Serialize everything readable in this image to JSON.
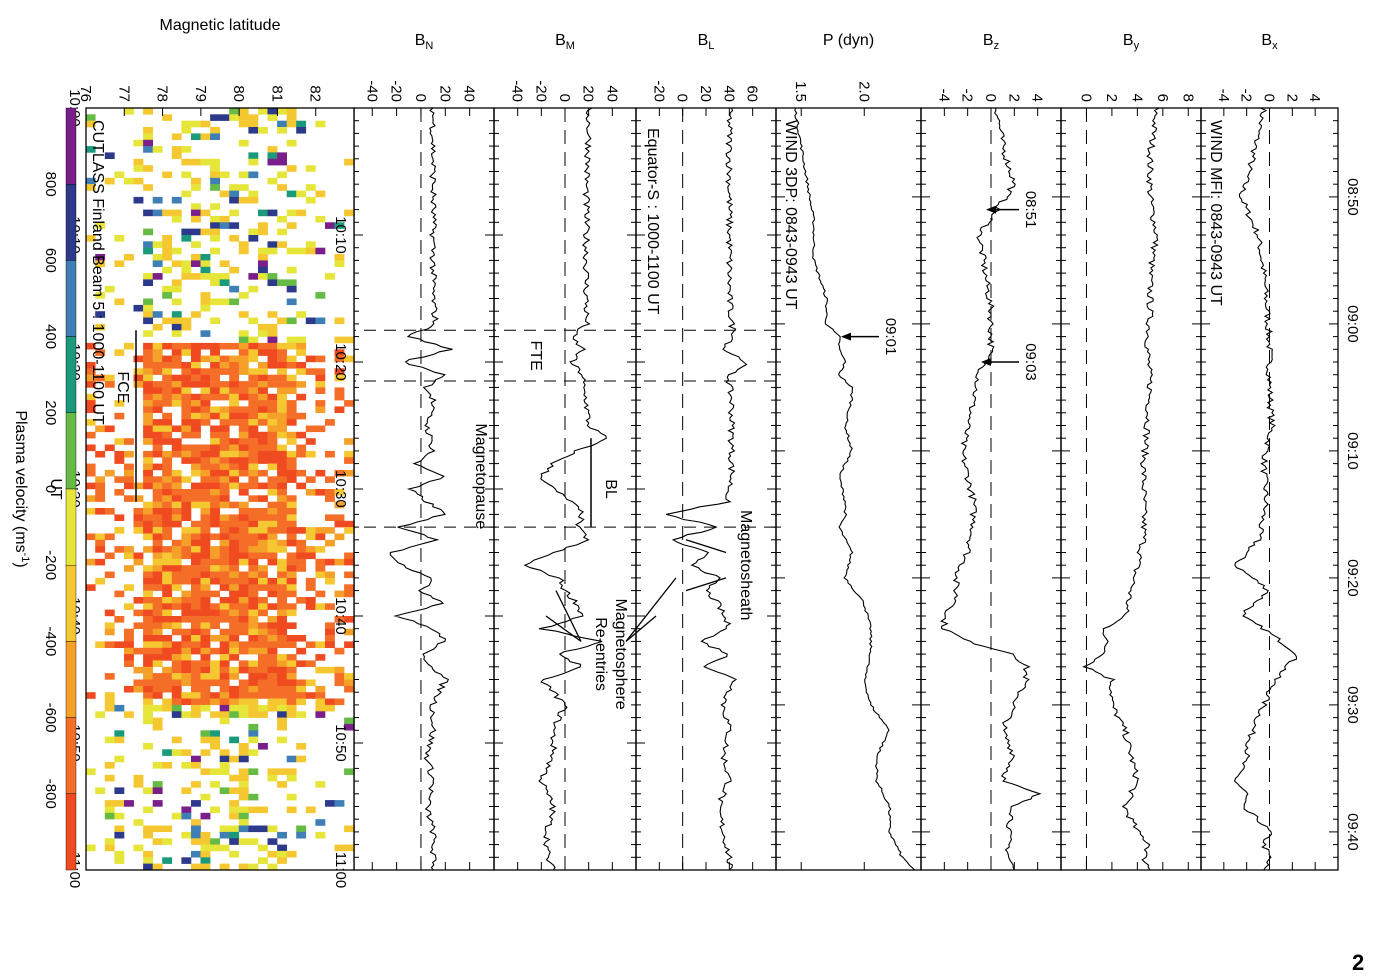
{
  "figure_number": "2",
  "chart_data": [
    {
      "type": "line",
      "panel": "wind_mfi",
      "title": "WIND MFI: 0843-0943 UT",
      "x_ticks": [
        "08:50",
        "09:00",
        "09:10",
        "09:20",
        "09:30",
        "09:40"
      ],
      "xlim_minutes": [
        -17,
        43
      ],
      "annotations": [
        "08:51",
        "09:03"
      ],
      "series": [
        {
          "name": "Bx",
          "ylabel": "B",
          "sub": "x",
          "ylim": [
            -6,
            6
          ],
          "yticks": [
            "4",
            "2",
            "0",
            "-2",
            "-4"
          ],
          "x": [
            -17,
            -13,
            -10,
            -7,
            -4,
            -1,
            2,
            5,
            8,
            11,
            14,
            17,
            19,
            20,
            21,
            23,
            24,
            26,
            28,
            30,
            32,
            34,
            36,
            37,
            38,
            39,
            40,
            41,
            42,
            43
          ],
          "y": [
            -0.5,
            -1.5,
            -2.5,
            -1,
            -0.5,
            -0.2,
            0,
            0,
            0.2,
            -0.5,
            -0.3,
            -1,
            -3,
            -1.5,
            0,
            -2.5,
            -0.5,
            2.5,
            0.5,
            -0.5,
            -1.5,
            -2,
            -3,
            -2,
            -2.5,
            -1,
            0,
            -0.5,
            0,
            -0.5
          ]
        },
        {
          "name": "By",
          "ylabel": "B",
          "sub": "y",
          "ylim": [
            -2,
            9
          ],
          "yticks": [
            "8",
            "6",
            "4",
            "2",
            "0"
          ],
          "x": [
            -17,
            -13,
            -10,
            -7,
            -4,
            -1,
            2,
            5,
            8,
            11,
            14,
            17,
            19,
            21,
            23,
            24,
            25,
            26,
            27,
            28,
            30,
            32,
            34,
            36,
            37,
            38,
            40,
            41,
            42,
            43
          ],
          "y": [
            5.5,
            5,
            5,
            5.5,
            5,
            5,
            4.8,
            5,
            4.8,
            4.5,
            4.5,
            4.5,
            4,
            3.5,
            3,
            1.5,
            1.5,
            1.5,
            0,
            2,
            2,
            3,
            3.5,
            4,
            3.5,
            3,
            4,
            5,
            4.5,
            5
          ]
        },
        {
          "name": "Bz",
          "ylabel": "B",
          "sub": "z",
          "ylim": [
            -6,
            6
          ],
          "yticks": [
            "4",
            "2",
            "0",
            "-2",
            "-4"
          ],
          "x": [
            -17,
            -14,
            -11,
            -9,
            -7,
            -4,
            -1,
            2,
            4,
            6,
            8,
            10,
            12,
            14,
            16,
            18,
            20,
            21,
            22,
            23,
            24,
            25,
            26,
            27,
            28,
            30,
            32,
            34,
            36,
            37,
            38,
            40,
            42,
            43
          ],
          "y": [
            0.5,
            1,
            2,
            0.5,
            -1,
            -0.5,
            0,
            0,
            -1,
            -1.5,
            -2,
            -2.5,
            -2,
            -1.5,
            -1.5,
            -2,
            -3,
            -3,
            -3,
            -4,
            -4,
            -2,
            2,
            3,
            3,
            2,
            1,
            2,
            1,
            4,
            2,
            1.5,
            1.5,
            2
          ]
        },
        {
          "name": "P",
          "ylabel": "P (dyn)",
          "ylim": [
            1.3,
            2.45
          ],
          "yticks": [
            "2.0",
            "1.5"
          ],
          "x": [
            -17,
            -14,
            -11,
            -8,
            -5,
            -2,
            0,
            1,
            2,
            3,
            4,
            5,
            6,
            8,
            10,
            12,
            14,
            15,
            16,
            17,
            18,
            20,
            22,
            24,
            26,
            28,
            30,
            32,
            34,
            36,
            38,
            40,
            42,
            43
          ],
          "y": [
            1.45,
            1.5,
            1.55,
            1.6,
            1.6,
            1.7,
            1.7,
            1.8,
            1.8,
            1.85,
            1.8,
            1.9,
            1.9,
            1.85,
            1.9,
            1.8,
            1.85,
            1.85,
            1.8,
            1.85,
            1.9,
            1.85,
            2,
            2.05,
            2.05,
            2.0,
            2.05,
            2.2,
            2.1,
            2.1,
            2.2,
            2.2,
            2.3,
            2.4
          ]
        }
      ]
    },
    {
      "type": "line",
      "panel": "equator_s",
      "title": "Equator-S : 1000-1100 UT",
      "x_ticks": [
        "10:10",
        "10:20",
        "10:30",
        "10:40",
        "10:50",
        "11:00"
      ],
      "xlim_minutes": [
        0,
        60
      ],
      "annotations": [
        "Magnetosheath",
        "Magnetosphere",
        "Re-entries",
        "BL",
        "FTE",
        "Magnetopause"
      ],
      "series": [
        {
          "name": "BL",
          "ylabel": "B",
          "sub": "L",
          "ylim": [
            -40,
            80
          ],
          "yticks": [
            "60",
            "40",
            "20",
            "0",
            "-20"
          ],
          "x": [
            0,
            3,
            6,
            9,
            12,
            15,
            17,
            18,
            19,
            20,
            21,
            22,
            23,
            25,
            27,
            29,
            31,
            32,
            33,
            34,
            35,
            36,
            37,
            38,
            39,
            40,
            41,
            42,
            43,
            44,
            45,
            47,
            49,
            51,
            53,
            55,
            57,
            59,
            60
          ],
          "y": [
            40,
            40,
            40,
            40,
            40,
            40,
            42,
            45,
            35,
            55,
            40,
            40,
            42,
            42,
            42,
            42,
            38,
            -15,
            30,
            -10,
            20,
            10,
            30,
            20,
            30,
            35,
            40,
            15,
            40,
            20,
            45,
            35,
            40,
            35,
            40,
            30,
            35,
            40,
            40
          ]
        },
        {
          "name": "BM",
          "ylabel": "B",
          "sub": "M",
          "ylim": [
            -60,
            60
          ],
          "yticks": [
            "40",
            "20",
            "0",
            "-20",
            "-40"
          ],
          "x": [
            0,
            3,
            6,
            9,
            12,
            15,
            17,
            18,
            19,
            20,
            21,
            22,
            23,
            25,
            26,
            27,
            28,
            29,
            30,
            31,
            32,
            33,
            34,
            35,
            36,
            37,
            38,
            39,
            40,
            41,
            42,
            43,
            44,
            45,
            47,
            49,
            51,
            53,
            55,
            57,
            59,
            60
          ],
          "y": [
            20,
            20,
            18,
            18,
            18,
            18,
            18,
            5,
            15,
            5,
            15,
            15,
            18,
            20,
            35,
            10,
            -10,
            -20,
            -10,
            5,
            15,
            10,
            20,
            -10,
            -35,
            -5,
            0,
            10,
            15,
            -20,
            30,
            -5,
            15,
            -20,
            0,
            -10,
            -10,
            -20,
            -10,
            -15,
            -15,
            -10
          ]
        },
        {
          "name": "BN",
          "ylabel": "B",
          "sub": "N",
          "ylim": [
            -55,
            60
          ],
          "yticks": [
            "40",
            "20",
            "0",
            "-20",
            "-40"
          ],
          "x": [
            0,
            3,
            6,
            9,
            12,
            15,
            17,
            18,
            19,
            20,
            21,
            22,
            23,
            25,
            27,
            28,
            29,
            30,
            32,
            33,
            34,
            35,
            36,
            37,
            38,
            39,
            40,
            41,
            42,
            43,
            44,
            45,
            47,
            49,
            51,
            53,
            55,
            57,
            59,
            60
          ],
          "y": [
            10,
            10,
            10,
            10,
            10,
            10,
            12,
            -10,
            25,
            -15,
            20,
            5,
            10,
            5,
            10,
            -5,
            20,
            -10,
            20,
            -20,
            15,
            -25,
            -15,
            10,
            0,
            20,
            -20,
            10,
            20,
            0,
            10,
            20,
            10,
            10,
            5,
            10,
            5,
            10,
            10,
            10
          ]
        }
      ]
    },
    {
      "type": "heatmap",
      "panel": "cutlass",
      "title": "CUTLASS Finland Beam 5 : 1000-1100 UT",
      "xlabel": "UT",
      "ylabel": "Magnetic latitude",
      "x_ticks": [
        "10:00",
        "10:10",
        "10:20",
        "10:30",
        "10:40",
        "10:50",
        "11:00"
      ],
      "y_ticks": [
        "82",
        "81",
        "80",
        "79",
        "78",
        "77",
        "76"
      ],
      "xlim_minutes": [
        0,
        60
      ],
      "ylim": [
        76,
        83
      ],
      "annotation": "FCE",
      "colorbar": {
        "label": "Plasma velocity (ms",
        "label_sup": "-1",
        "label_end": ")",
        "ticks": [
          "800",
          "600",
          "400",
          "200",
          "0",
          "-200",
          "-400",
          "-600",
          "-800"
        ],
        "colors": [
          "#7a1f8a",
          "#2d3a8c",
          "#3f7fb5",
          "#1a9a7a",
          "#66bb44",
          "#e6e63a",
          "#f5c832",
          "#f5a028",
          "#f56e28",
          "#f04a20"
        ]
      }
    }
  ]
}
